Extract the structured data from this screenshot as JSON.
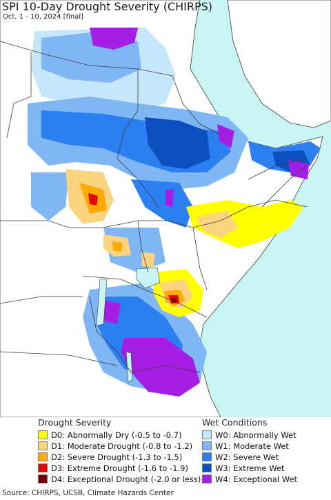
{
  "header": {
    "title": "SPI 10-Day Drought Severity (CHIRPS)",
    "subtitle": "Oct. 1 - 10, 2024 [final]"
  },
  "colors": {
    "water": "#c8f4f4",
    "land": "#ffffff",
    "border": "#3a3a3a"
  },
  "legend": {
    "drought_title": "Drought Severity",
    "wet_title": "Wet Conditions",
    "drought_items": [
      {
        "label": "D0: Abnormally Dry (-0.5 to -0.7)",
        "color": "#ffff00"
      },
      {
        "label": "D1: Moderate Drought (-0.8 to -1.2)",
        "color": "#fcd37f"
      },
      {
        "label": "D2: Severe Drought (-1.3 to -1.5)",
        "color": "#ffaa00"
      },
      {
        "label": "D3: Extreme Drought (-1.6 to -1.9)",
        "color": "#e60000"
      },
      {
        "label": "D4: Exceptional Drought (-2.0 or less)",
        "color": "#730000"
      }
    ],
    "wet_items": [
      {
        "label": "W0: Abnormally Wet",
        "color": "#c6e6fb"
      },
      {
        "label": "W1: Moderate Wet",
        "color": "#7fb6f5"
      },
      {
        "label": "W2: Severe Wet",
        "color": "#2c7ff0"
      },
      {
        "label": "W3: Extreme Wet",
        "color": "#0d4fbf"
      },
      {
        "label": "W4: Exceptional Wet",
        "color": "#a41ee6"
      }
    ]
  },
  "footer": {
    "source": "Source: CHIRPS, UCSB, Climate Hazards Center"
  }
}
